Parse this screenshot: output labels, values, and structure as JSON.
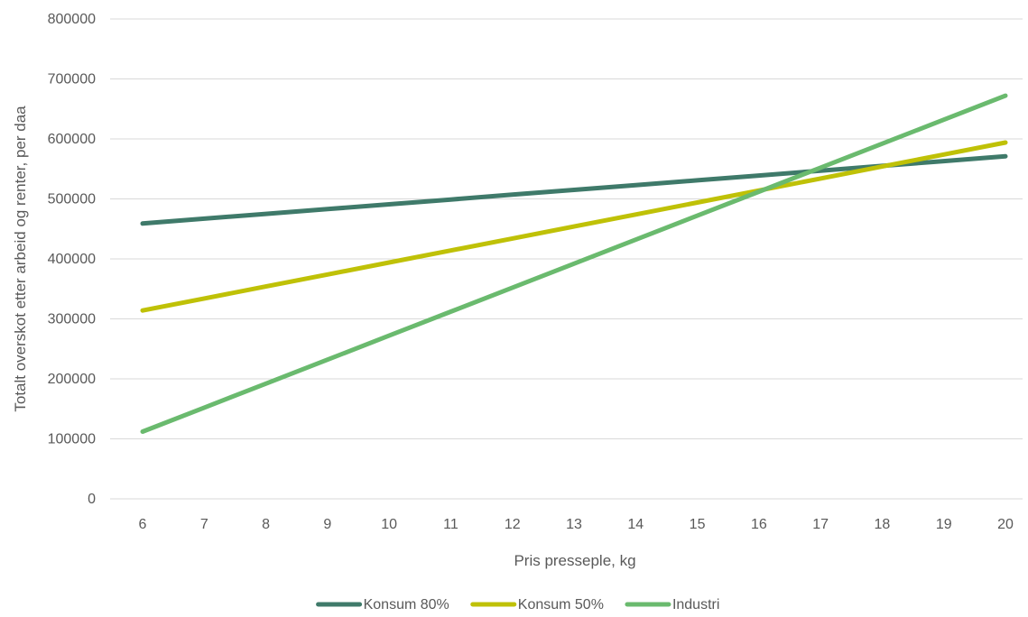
{
  "chart_data": {
    "type": "line",
    "title": "",
    "xlabel": "Pris presseple, kg",
    "ylabel": "Totalt overskot etter arbeid og renter, per daa",
    "x": [
      6,
      7,
      8,
      9,
      10,
      11,
      12,
      13,
      14,
      15,
      16,
      17,
      18,
      19,
      20
    ],
    "ylim": [
      0,
      800000
    ],
    "yticks": [
      0,
      100000,
      200000,
      300000,
      400000,
      500000,
      600000,
      700000,
      800000
    ],
    "grid": true,
    "legend_position": "bottom",
    "series": [
      {
        "name": "Konsum 80%",
        "color": "#3f7a6a",
        "values": [
          459000,
          467000,
          475000,
          483000,
          491000,
          499000,
          507000,
          515000,
          523000,
          531000,
          539000,
          547000,
          555000,
          563000,
          571000
        ]
      },
      {
        "name": "Konsum 50%",
        "color": "#bfc107",
        "values": [
          314000,
          334000,
          354000,
          374000,
          394000,
          414000,
          434000,
          454000,
          474000,
          494000,
          514000,
          534000,
          554000,
          574000,
          594000
        ]
      },
      {
        "name": "Industri",
        "color": "#6aba6e",
        "values": [
          112000,
          152000,
          192000,
          232000,
          272000,
          312000,
          352000,
          392000,
          432000,
          472000,
          512000,
          552000,
          592000,
          632000,
          672000
        ]
      }
    ]
  }
}
